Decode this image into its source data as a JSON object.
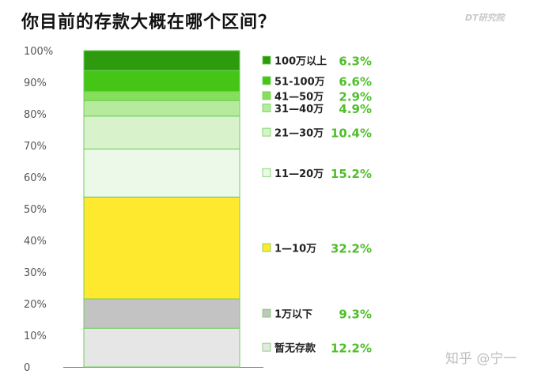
{
  "header": {
    "title": "你目前的存款大概在哪个区间？",
    "brand": "DT研究院"
  },
  "watermark": "知乎 @宁一",
  "colors": {
    "value_text": "#4fbf2a",
    "axis_text": "#555555",
    "bar_border": "#6fcf5a"
  },
  "chart_data": {
    "type": "bar",
    "stacked": true,
    "title": "你目前的存款大概在哪个区间？",
    "xlabel": "",
    "ylabel": "",
    "ylim": [
      0,
      100
    ],
    "yticks": [
      "0",
      "10%",
      "20%",
      "30%",
      "40%",
      "50%",
      "60%",
      "70%",
      "80%",
      "90%",
      "100%"
    ],
    "grid": false,
    "legend_position": "right",
    "series": [
      {
        "name": "暂无存款",
        "value": 12.2,
        "label": "12.2%",
        "color": "#e6e6e6"
      },
      {
        "name": "1万以下",
        "value": 9.3,
        "label": "9.3%",
        "color": "#c3c3c3"
      },
      {
        "name": "1—10万",
        "value": 32.2,
        "label": "32.2%",
        "color": "#ffe92e"
      },
      {
        "name": "11—20万",
        "value": 15.2,
        "label": "15.2%",
        "color": "#edf9e8"
      },
      {
        "name": "21—30万",
        "value": 10.4,
        "label": "10.4%",
        "color": "#d8f3cc"
      },
      {
        "name": "31—40万",
        "value": 4.9,
        "label": "4.9%",
        "color": "#b6eb9d"
      },
      {
        "name": "41—50万",
        "value": 2.9,
        "label": "2.9%",
        "color": "#86de5b"
      },
      {
        "name": "51-100万",
        "value": 6.6,
        "label": "6.6%",
        "color": "#45c516"
      },
      {
        "name": "100万以上",
        "value": 6.3,
        "label": "6.3%",
        "color": "#2e9b0e"
      }
    ]
  }
}
